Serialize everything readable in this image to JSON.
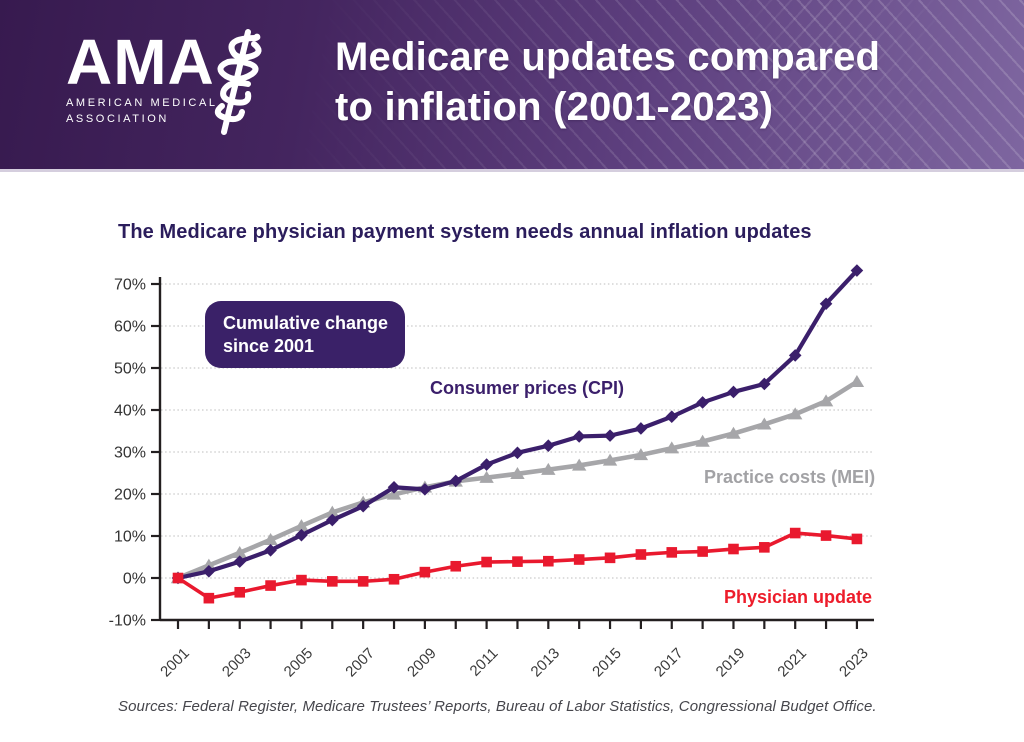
{
  "banner": {
    "logo": {
      "acronym": "AMA",
      "org_line1": "AMERICAN MEDICAL",
      "org_line2": "ASSOCIATION"
    },
    "title_line1": "Medicare updates compared",
    "title_line2": "to inflation (2001-2023)"
  },
  "heading": "The Medicare physician payment system needs annual inflation updates",
  "annotation": {
    "line1": "Cumulative change",
    "line2": "since 2001"
  },
  "sources": "Sources: Federal Register, Medicare Trustees’ Reports, Bureau of Labor Statistics, Congressional Budget Office.",
  "colors": {
    "banner_dark": "#371a4f",
    "banner_light": "#7e66a0",
    "heading_ink": "#2b1d5c",
    "annotation_bg": "#3a2168",
    "cpi_purple": "#3b1f6b",
    "mei_gray": "#a6a6a9",
    "update_red": "#e9192e",
    "axis": "#231f20",
    "grid": "#bdbdbd",
    "tick_label": "#333333"
  },
  "chart_data": {
    "type": "line",
    "title": "The Medicare physician payment system needs annual inflation updates",
    "annotation": "Cumulative change since 2001",
    "x": [
      2001,
      2002,
      2003,
      2004,
      2005,
      2006,
      2007,
      2008,
      2009,
      2010,
      2011,
      2012,
      2013,
      2014,
      2015,
      2016,
      2017,
      2018,
      2019,
      2020,
      2021,
      2022,
      2023
    ],
    "xtick_labels": [
      "2001",
      "2003",
      "2005",
      "2007",
      "2009",
      "2011",
      "2013",
      "2015",
      "2017",
      "2019",
      "2021",
      "2023"
    ],
    "ytick_labels": [
      "-10%",
      "0%",
      "10%",
      "20%",
      "30%",
      "40%",
      "50%",
      "60%",
      "70%"
    ],
    "ylim": [
      -10,
      70
    ],
    "ytick_step": 10,
    "unit": "percent_cumulative_since_2001",
    "grid": "dotted-horizontal",
    "legend_position": "inline-labels",
    "series": [
      {
        "name": "Practice costs (MEI)",
        "color": "#a6a6a9",
        "marker": "triangle",
        "values": [
          0,
          3.0,
          6.0,
          9.1,
          12.4,
          15.6,
          18.0,
          19.9,
          21.6,
          23.0,
          23.9,
          24.8,
          25.8,
          26.8,
          28.0,
          29.3,
          30.9,
          32.5,
          34.4,
          36.6,
          39.0,
          42.1,
          46.7
        ]
      },
      {
        "name": "Consumer prices (CPI)",
        "color": "#3b1f6b",
        "marker": "diamond",
        "values": [
          0,
          1.6,
          3.9,
          6.6,
          10.2,
          13.8,
          17.1,
          21.6,
          21.1,
          23.1,
          27.0,
          29.8,
          31.5,
          33.7,
          33.9,
          35.6,
          38.4,
          41.8,
          44.3,
          46.2,
          53.0,
          65.3,
          73.2
        ]
      },
      {
        "name": "Physician update",
        "color": "#e9192e",
        "marker": "square",
        "values": [
          0,
          -4.8,
          -3.4,
          -1.8,
          -0.5,
          -0.8,
          -0.8,
          -0.3,
          1.4,
          2.8,
          3.8,
          3.9,
          4.0,
          4.4,
          4.8,
          5.6,
          6.1,
          6.3,
          6.9,
          7.3,
          10.7,
          10.1,
          9.3
        ]
      }
    ]
  }
}
